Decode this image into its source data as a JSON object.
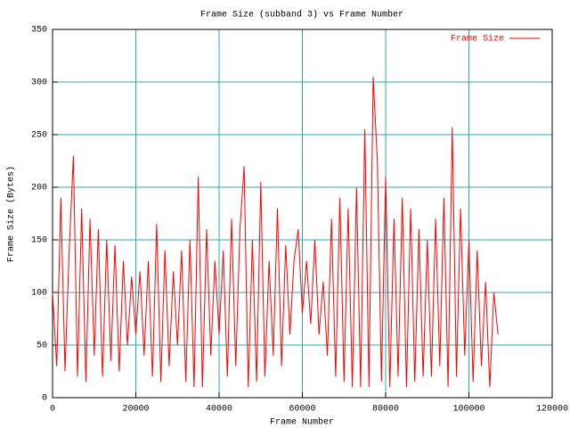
{
  "chart_data": {
    "type": "line",
    "title": "Frame Size (subband 3) vs Frame Number",
    "x_label": "Frame Number",
    "y_label": "Frame Size (Bytes)",
    "x": [
      0,
      1000,
      2000,
      3000,
      4000,
      5000,
      6000,
      7000,
      8000,
      9000,
      10000,
      11000,
      12000,
      13000,
      14000,
      15000,
      16000,
      17000,
      18000,
      19000,
      20000,
      21000,
      22000,
      23000,
      24000,
      25000,
      26000,
      27000,
      28000,
      29000,
      30000,
      31000,
      32000,
      33000,
      34000,
      35000,
      36000,
      37000,
      38000,
      39000,
      40000,
      41000,
      42000,
      43000,
      44000,
      45000,
      46000,
      47000,
      48000,
      49000,
      50000,
      51000,
      52000,
      53000,
      54000,
      55000,
      56000,
      57000,
      58000,
      59000,
      60000,
      61000,
      62000,
      63000,
      64000,
      65000,
      66000,
      67000,
      68000,
      69000,
      70000,
      71000,
      72000,
      73000,
      74000,
      75000,
      76000,
      77000,
      78000,
      79000,
      80000,
      81000,
      82000,
      83000,
      84000,
      85000,
      86000,
      87000,
      88000,
      89000,
      90000,
      91000,
      92000,
      93000,
      94000,
      95000,
      96000,
      97000,
      98000,
      99000,
      100000,
      101000,
      102000,
      103000,
      104000,
      105000,
      106000,
      107000
    ],
    "series": [
      {
        "name": "Frame Size",
        "color": "#ff0000",
        "values": [
          100,
          30,
          190,
          25,
          140,
          230,
          20,
          180,
          15,
          170,
          40,
          160,
          20,
          150,
          35,
          145,
          25,
          130,
          50,
          115,
          60,
          120,
          40,
          130,
          20,
          165,
          15,
          140,
          30,
          120,
          50,
          140,
          15,
          150,
          10,
          210,
          10,
          160,
          40,
          130,
          60,
          140,
          20,
          170,
          30,
          160,
          220,
          10,
          150,
          15,
          205,
          20,
          130,
          40,
          180,
          30,
          145,
          60,
          130,
          160,
          80,
          130,
          70,
          150,
          60,
          110,
          40,
          170,
          20,
          190,
          15,
          180,
          10,
          200,
          10,
          255,
          10,
          305,
          225,
          15,
          210,
          10,
          170,
          20,
          190,
          10,
          180,
          15,
          160,
          20,
          150,
          20,
          170,
          30,
          190,
          10,
          257,
          20,
          180,
          40,
          150,
          15,
          140,
          30,
          110,
          10,
          100,
          60
        ]
      }
    ],
    "xlim": [
      0,
      120000
    ],
    "ylim": [
      0,
      350
    ],
    "xticks": [
      0,
      20000,
      40000,
      60000,
      80000,
      100000,
      120000
    ],
    "yticks": [
      0,
      50,
      100,
      150,
      200,
      250,
      300,
      350
    ],
    "grid": true,
    "grid_color": "#20b0b0",
    "legend": "top-right"
  }
}
